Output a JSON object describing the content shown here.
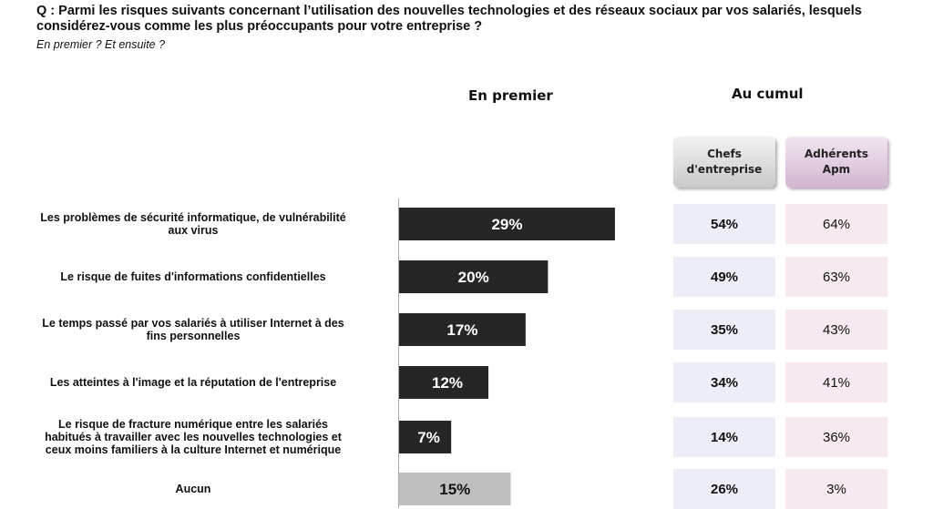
{
  "question": "Q : Parmi les risques suivants concernant l’utilisation des nouvelles technologies et des réseaux sociaux par vos salariés, lesquels considérez-vous comme les plus préoccupants pour votre entreprise ?",
  "subquestion": "En premier ? Et ensuite ?",
  "headers": {
    "premier": "En premier",
    "cumul": "Au cumul",
    "chefs": "Chefs\nd'entreprise",
    "apm": "Adhérents\nApm"
  },
  "colors": {
    "bar_main": "#262626",
    "bar_none": "#bfbfbf",
    "chefs_bg": "#ecedf7",
    "apm_bg": "#f6eaf0"
  },
  "chart_data": {
    "type": "bar",
    "orientation": "horizontal",
    "categories": [
      "Les problèmes de sécurité informatique, de vulnérabilité aux virus",
      "Le risque de fuites d'informations confidentielles",
      "Le temps passé par vos salariés à utiliser Internet à des fins personnelles",
      "Les atteintes à l'image et la réputation de l'entreprise",
      "Le risque de fracture numérique entre les salariés habitués à travailler avec les nouvelles technologies et ceux moins familiers à la culture Internet et numérique",
      "Aucun"
    ],
    "label_lines": [
      [
        "Les problèmes de sécurité informatique, de vulnérabilité",
        "aux virus"
      ],
      [
        "Le risque de fuites d'informations confidentielles"
      ],
      [
        "Le temps passé par vos salariés à utiliser Internet à des",
        "fins personnelles"
      ],
      [
        "Les atteintes à l'image et la réputation de l'entreprise"
      ],
      [
        "Le risque de fracture numérique entre les salariés",
        "habitués à travailler avec les nouvelles technologies et",
        "ceux moins familiers à la culture Internet et numérique"
      ],
      [
        "Aucun"
      ]
    ],
    "series": [
      {
        "name": "En premier",
        "values": [
          29,
          20,
          17,
          12,
          7,
          15
        ],
        "labels": [
          "29%",
          "20%",
          "17%",
          "12%",
          "7%",
          "15%"
        ]
      }
    ],
    "table": {
      "chefs": [
        "54%",
        "49%",
        "35%",
        "34%",
        "14%",
        "26%"
      ],
      "apm": [
        "64%",
        "63%",
        "43%",
        "41%",
        "36%",
        "3%"
      ]
    },
    "xlim": [
      0,
      35
    ],
    "grid": false,
    "legend": "none"
  }
}
